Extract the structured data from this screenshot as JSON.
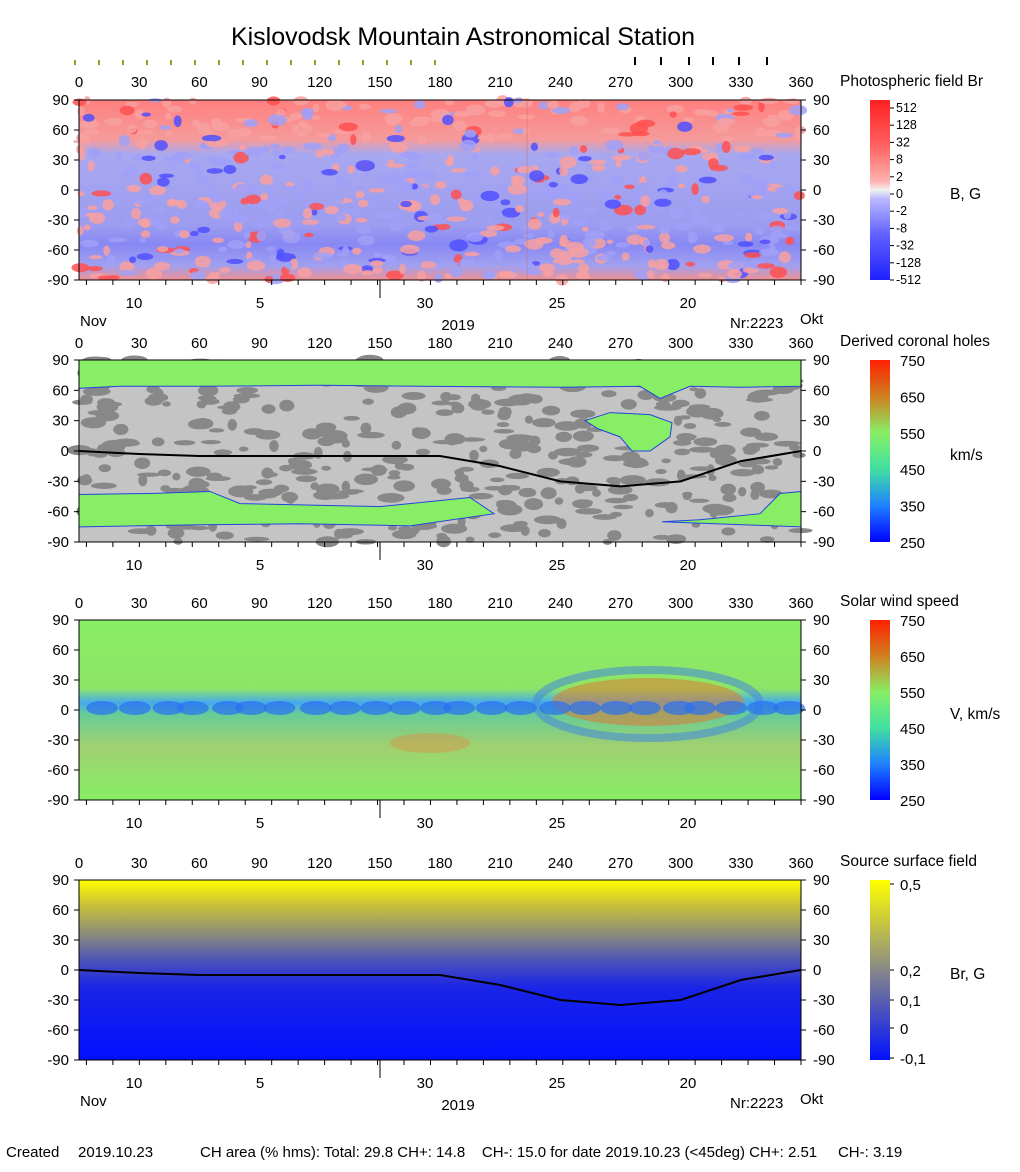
{
  "title": "Kislovodsk Mountain Astronomical Station",
  "carrington_ticks": [
    "0",
    "30",
    "60",
    "90",
    "120",
    "150",
    "180",
    "210",
    "240",
    "270",
    "300",
    "330",
    "360"
  ],
  "latitude_ticks": [
    "90",
    "60",
    "30",
    "0",
    "-30",
    "-60",
    "-90"
  ],
  "date_ticks": [
    "10",
    "5",
    "30",
    "25",
    "20"
  ],
  "month_left": "Nov",
  "month_right": "Okt",
  "year": "2019",
  "rotation": "Nr:2223",
  "panels": [
    {
      "title": "Photospheric field Br",
      "unit": "B, G",
      "colorbar_labels": [
        "512",
        "128",
        "32",
        "8",
        "2",
        "0",
        "-2",
        "-8",
        "-32",
        "-128",
        "-512"
      ],
      "colors": {
        "positive": "#ff2020",
        "negative": "#2020ff",
        "zero": "#f2f2f2"
      }
    },
    {
      "title": "Derived coronal holes",
      "unit": "km/s",
      "colorbar_labels": [
        "750",
        "650",
        "550",
        "450",
        "350",
        "250"
      ],
      "colors": {
        "open_field": "#88ee66",
        "closed_light": "#c8c8c8",
        "closed_dark": "#888888"
      }
    },
    {
      "title": "Solar wind speed",
      "unit": "V, km/s",
      "colorbar_labels": [
        "750",
        "650",
        "550",
        "450",
        "350",
        "250"
      ],
      "colors": {
        "low": "#0000ff",
        "mid": "#40e0a0",
        "high": "#ff2000"
      }
    },
    {
      "title": "Source surface field",
      "unit": "Br, G",
      "colorbar_labels": [
        "0,5",
        "0,2",
        "0,1",
        "0",
        "-0,1"
      ],
      "colors": {
        "high": "#ffff00",
        "mid": "#888888",
        "low": "#0010ff"
      }
    }
  ],
  "footer": {
    "created_label": "Created",
    "created_date": "2019.10.23",
    "ch_area": "CH area (% hms): Total: 29.8 CH+: 14.8    CH-: 15.0 for date 2019.10.23 (<45deg) CH+: 2.51     CH-: 3.19"
  },
  "chart_data": [
    {
      "type": "heatmap",
      "title": "Photospheric field Br",
      "xlim": [
        0,
        360
      ],
      "ylim": [
        -90,
        90
      ],
      "colorbar_unit": "B, G",
      "colorbar_ticks": [
        512,
        128,
        32,
        8,
        2,
        0,
        -2,
        -8,
        -32,
        -128,
        -512
      ]
    },
    {
      "type": "heatmap",
      "title": "Derived coronal holes",
      "xlim": [
        0,
        360
      ],
      "ylim": [
        -90,
        90
      ],
      "colorbar_unit": "km/s",
      "colorbar_ticks": [
        750,
        650,
        550,
        450,
        350,
        250
      ],
      "neutral_line": {
        "x": [
          0,
          30,
          60,
          90,
          120,
          150,
          180,
          210,
          240,
          270,
          300,
          330,
          360
        ],
        "y": [
          0,
          -3,
          -5,
          -5,
          -5,
          -5,
          -5,
          -15,
          -30,
          -35,
          -30,
          -10,
          0
        ]
      }
    },
    {
      "type": "heatmap",
      "title": "Solar wind speed",
      "xlim": [
        0,
        360
      ],
      "ylim": [
        -90,
        90
      ],
      "colorbar_unit": "V, km/s",
      "colorbar_ticks": [
        750,
        650,
        550,
        450,
        350,
        250
      ]
    },
    {
      "type": "heatmap",
      "title": "Source surface field",
      "xlim": [
        0,
        360
      ],
      "ylim": [
        -90,
        90
      ],
      "colorbar_unit": "Br, G",
      "colorbar_ticks": [
        0.5,
        0.2,
        0.1,
        0,
        -0.1
      ],
      "neutral_line": {
        "x": [
          0,
          30,
          60,
          90,
          120,
          150,
          180,
          210,
          240,
          270,
          300,
          330,
          360
        ],
        "y": [
          0,
          -3,
          -5,
          -5,
          -5,
          -5,
          -5,
          -15,
          -30,
          -35,
          -30,
          -10,
          0
        ]
      }
    }
  ]
}
